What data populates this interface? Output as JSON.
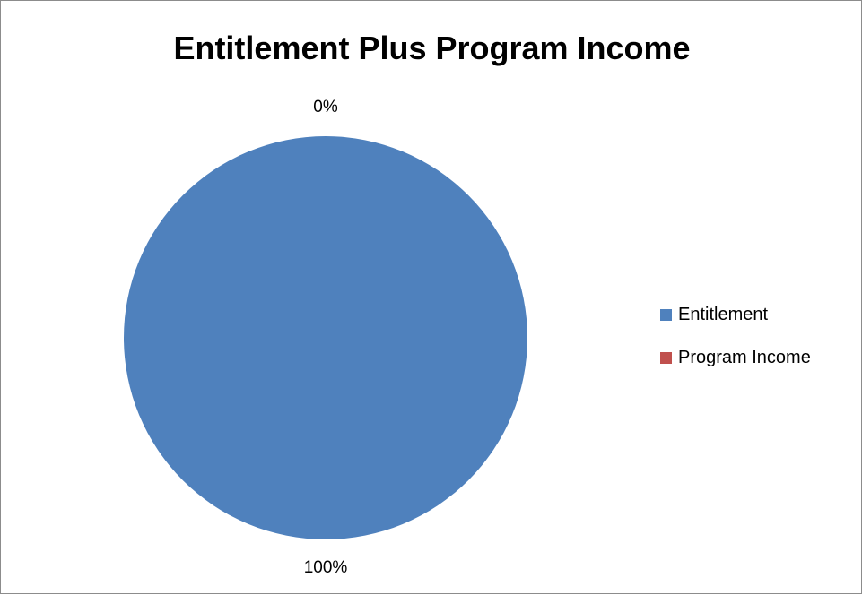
{
  "chart_data": {
    "type": "pie",
    "title": "Entitlement Plus Program Income",
    "categories": [
      "Entitlement",
      "Program Income"
    ],
    "values": [
      100,
      0
    ],
    "data_labels": [
      "100%",
      "0%"
    ],
    "colors": [
      "#4F81BD",
      "#C0504D"
    ],
    "legend": {
      "position": "right",
      "entries": [
        "Entitlement",
        "Program Income"
      ]
    }
  }
}
